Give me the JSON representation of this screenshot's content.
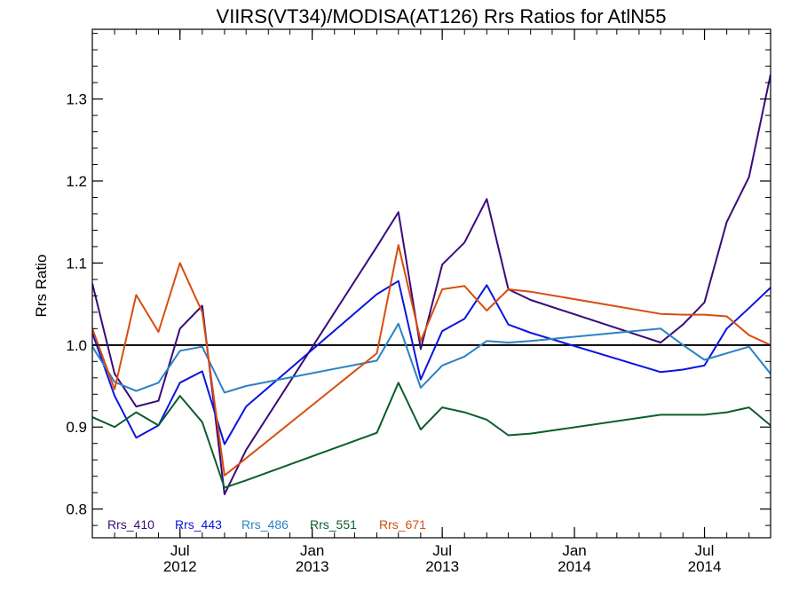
{
  "chart_data": {
    "type": "line",
    "title": "VIIRS(VT34)/MODISA(AT126)  Rrs Ratios for AtlN55",
    "ylabel": "Rrs Ratio",
    "xlabel": "",
    "xlim": [
      "2012-03-01",
      "2014-10-01"
    ],
    "ylim": [
      0.765,
      1.385
    ],
    "y_ticks": [
      "0.8",
      "0.9",
      "1.0",
      "1.1",
      "1.2",
      "1.3"
    ],
    "x_ticks": [
      {
        "date": "2012-07-01",
        "line1": "Jul",
        "line2": "2012"
      },
      {
        "date": "2013-01-01",
        "line1": "Jan",
        "line2": "2013"
      },
      {
        "date": "2013-07-01",
        "line1": "Jul",
        "line2": "2013"
      },
      {
        "date": "2014-01-01",
        "line1": "Jan",
        "line2": "2014"
      },
      {
        "date": "2014-07-01",
        "line1": "Jul",
        "line2": "2014"
      }
    ],
    "reference_line": 1.0,
    "grid": false,
    "legend_position": "bottom-left",
    "x": [
      "2012-03-01",
      "2012-04-01",
      "2012-05-01",
      "2012-06-01",
      "2012-07-01",
      "2012-08-01",
      "2012-09-01",
      "2012-10-01",
      "2013-04-01",
      "2013-05-01",
      "2013-06-01",
      "2013-07-01",
      "2013-08-01",
      "2013-09-01",
      "2013-10-01",
      "2013-11-01",
      "2014-05-01",
      "2014-06-01",
      "2014-07-01",
      "2014-08-01",
      "2014-09-01",
      "2014-10-01"
    ],
    "series": [
      {
        "name": "Rrs_410",
        "color": "#3b0a7a",
        "values": [
          1.075,
          0.965,
          0.925,
          0.932,
          1.02,
          1.048,
          0.818,
          0.872,
          1.12,
          1.162,
          0.995,
          1.098,
          1.125,
          1.178,
          1.068,
          1.055,
          1.003,
          1.025,
          1.052,
          1.15,
          1.205,
          1.33
        ]
      },
      {
        "name": "Rrs_443",
        "color": "#0a14e0",
        "values": [
          1.015,
          0.938,
          0.887,
          0.902,
          0.954,
          0.968,
          0.879,
          0.925,
          1.062,
          1.078,
          0.958,
          1.017,
          1.032,
          1.073,
          1.025,
          1.015,
          0.967,
          0.97,
          0.975,
          1.02,
          1.045,
          1.07
        ]
      },
      {
        "name": "Rrs_486",
        "color": "#2a82c4",
        "values": [
          0.998,
          0.955,
          0.944,
          0.954,
          0.993,
          0.998,
          0.942,
          0.95,
          0.981,
          1.026,
          0.948,
          0.975,
          0.986,
          1.005,
          1.003,
          1.005,
          1.02,
          1.0,
          0.982,
          0.99,
          0.998,
          0.965
        ]
      },
      {
        "name": "Rrs_551",
        "color": "#0b5e2c",
        "values": [
          0.912,
          0.9,
          0.918,
          0.902,
          0.938,
          0.906,
          0.826,
          0.835,
          0.893,
          0.954,
          0.897,
          0.924,
          0.918,
          0.909,
          0.89,
          0.892,
          0.915,
          0.915,
          0.915,
          0.918,
          0.924,
          0.902
        ]
      },
      {
        "name": "Rrs_671",
        "color": "#d94d0e",
        "values": [
          1.02,
          0.946,
          1.061,
          1.016,
          1.1,
          1.04,
          0.841,
          0.862,
          0.99,
          1.122,
          1.005,
          1.068,
          1.072,
          1.042,
          1.068,
          1.065,
          1.038,
          1.037,
          1.037,
          1.035,
          1.012,
          1.0
        ]
      }
    ]
  }
}
